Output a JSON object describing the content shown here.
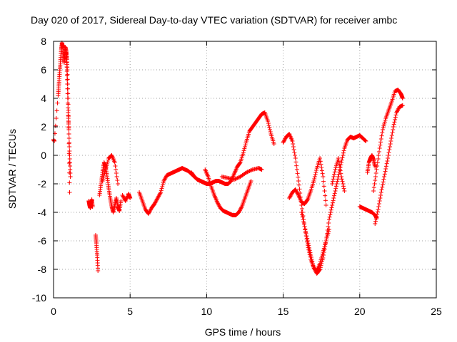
{
  "chart_data": {
    "type": "scatter",
    "title": "Day 020 of 2017, Sidereal Day-to-day VTEC variation (SDTVAR) for receiver ambc",
    "xlabel": "GPS time / hours",
    "ylabel": "SDTVAR / TECUs",
    "xlim": [
      0,
      25
    ],
    "ylim": [
      -10,
      8
    ],
    "xticks": [
      0,
      5,
      10,
      15,
      20,
      25
    ],
    "yticks": [
      -10,
      -8,
      -6,
      -4,
      -2,
      0,
      2,
      4,
      6,
      8
    ],
    "xtick_labels": [
      "0",
      "5",
      "10",
      "15",
      "20",
      "25"
    ],
    "ytick_labels": [
      "-10",
      "-8",
      "-6",
      "-4",
      "-2",
      "0",
      "2",
      "4",
      "6",
      "8"
    ],
    "grid": true,
    "marker": "+",
    "color": "#ff0000",
    "series": [
      {
        "name": "s1",
        "x": [
          0.0,
          0.05,
          0.3,
          0.35,
          0.4,
          0.45,
          0.5,
          0.55,
          0.6,
          0.65,
          0.7,
          0.75,
          0.8,
          0.85,
          0.9,
          0.95,
          1.0,
          1.05
        ],
        "y": [
          1.1,
          1.0,
          4.2,
          5.0,
          5.8,
          6.6,
          7.4,
          7.9,
          7.6,
          7.0,
          6.5,
          7.6,
          7.5,
          7.1,
          6.0,
          4.0,
          1.5,
          -2.6
        ]
      },
      {
        "name": "s2",
        "x": [
          0.8,
          0.85,
          0.9,
          0.95,
          1.0,
          1.05,
          1.1
        ],
        "y": [
          7.2,
          6.8,
          5.0,
          3.0,
          1.8,
          0.0,
          -1.5
        ]
      },
      {
        "name": "s3",
        "x": [
          2.3,
          2.35,
          2.4,
          2.45,
          2.5,
          2.55
        ],
        "y": [
          -3.2,
          -3.5,
          -3.7,
          -3.4,
          -3.1,
          -3.6
        ]
      },
      {
        "name": "s4",
        "x": [
          2.75,
          2.8,
          2.85,
          2.9
        ],
        "y": [
          -5.6,
          -6.2,
          -7.0,
          -8.1
        ]
      },
      {
        "name": "s5",
        "x": [
          3.0,
          3.1,
          3.2,
          3.3,
          3.4,
          3.5,
          3.6,
          3.7,
          3.8,
          3.9,
          4.0,
          4.1,
          4.2,
          4.3,
          4.4
        ],
        "y": [
          -2.8,
          -2.0,
          -1.2,
          -0.5,
          -0.8,
          -1.5,
          -2.3,
          -3.0,
          -3.6,
          -4.0,
          -3.5,
          -3.0,
          -3.6,
          -3.9,
          -3.2
        ]
      },
      {
        "name": "s6",
        "x": [
          3.2,
          3.4,
          3.6,
          3.8,
          4.0,
          4.2
        ],
        "y": [
          -1.8,
          -1.0,
          -0.2,
          0.0,
          -0.5,
          -2.0
        ]
      },
      {
        "name": "s7",
        "x": [
          4.5,
          4.7,
          4.9,
          5.0
        ],
        "y": [
          -2.8,
          -3.2,
          -2.7,
          -3.0
        ]
      },
      {
        "name": "s8",
        "x": [
          5.6,
          5.8,
          6.0,
          6.2,
          6.4,
          6.6,
          6.8,
          7.0,
          7.2,
          7.4,
          7.6,
          7.8,
          8.0,
          8.2,
          8.4,
          8.6,
          8.8,
          9.0,
          9.2,
          9.4,
          9.6,
          9.8,
          10.0
        ],
        "y": [
          -2.6,
          -3.2,
          -3.8,
          -4.1,
          -3.7,
          -3.4,
          -3.0,
          -2.6,
          -1.8,
          -1.4,
          -1.3,
          -1.2,
          -1.1,
          -1.0,
          -0.9,
          -1.0,
          -1.1,
          -1.3,
          -1.5,
          -1.7,
          -1.8,
          -1.9,
          -2.0
        ]
      },
      {
        "name": "s9",
        "x": [
          9.0,
          9.2,
          9.4,
          9.6,
          9.8,
          10.0,
          10.2,
          10.4,
          10.6,
          10.8,
          11.0,
          11.2,
          11.4,
          11.6,
          11.8,
          12.0,
          12.2,
          12.4,
          12.6,
          12.8,
          13.0,
          13.2,
          13.4,
          13.6,
          13.8,
          14.0,
          14.2,
          14.4
        ],
        "y": [
          -1.2,
          -1.5,
          -1.7,
          -1.8,
          -1.9,
          -2.0,
          -2.0,
          -1.9,
          -1.8,
          -1.8,
          -1.9,
          -2.0,
          -2.0,
          -1.8,
          -1.3,
          -0.8,
          -0.5,
          0.2,
          1.0,
          1.7,
          2.0,
          2.3,
          2.6,
          2.9,
          3.0,
          2.4,
          1.5,
          0.8
        ]
      },
      {
        "name": "s10",
        "x": [
          9.9,
          10.1,
          10.3,
          10.5,
          10.7,
          10.9,
          11.1,
          11.3,
          11.5,
          11.7,
          11.9,
          12.1,
          12.3,
          12.5,
          12.7,
          12.9
        ],
        "y": [
          -1.0,
          -1.5,
          -2.2,
          -2.8,
          -3.3,
          -3.7,
          -3.9,
          -4.0,
          -4.1,
          -4.2,
          -4.2,
          -4.0,
          -3.6,
          -3.0,
          -2.4,
          -1.8
        ]
      },
      {
        "name": "s11",
        "x": [
          11.0,
          11.4,
          11.8,
          12.2,
          12.6,
          13.0,
          13.4,
          13.6
        ],
        "y": [
          -1.5,
          -1.6,
          -1.7,
          -1.5,
          -1.2,
          -1.0,
          -0.9,
          -1.0
        ]
      },
      {
        "name": "s12",
        "x": [
          15.0,
          15.2,
          15.4,
          15.6,
          15.8,
          16.0,
          16.2,
          16.4,
          16.6,
          16.8,
          17.0,
          17.2,
          17.4,
          17.6,
          17.8,
          18.0
        ],
        "y": [
          0.9,
          1.3,
          1.5,
          1.0,
          -0.2,
          -1.8,
          -3.5,
          -5.0,
          -6.3,
          -7.3,
          -7.9,
          -8.1,
          -7.6,
          -6.8,
          -6.0,
          -5.2
        ]
      },
      {
        "name": "s13",
        "x": [
          15.4,
          15.6,
          15.8,
          16.0,
          16.2,
          16.4,
          16.6,
          16.8,
          17.0,
          17.2,
          17.4,
          17.6,
          17.8
        ],
        "y": [
          -3.0,
          -2.6,
          -2.4,
          -2.8,
          -3.3,
          -3.4,
          -3.1,
          -2.5,
          -1.8,
          -0.9,
          -0.2,
          -1.5,
          -3.5
        ]
      },
      {
        "name": "s14",
        "x": [
          16.2,
          16.4,
          16.6,
          16.8,
          17.0,
          17.2,
          17.4,
          17.6,
          17.8,
          18.0,
          18.2,
          18.4,
          18.6,
          18.8,
          19.0,
          19.2,
          19.4,
          19.6,
          19.8,
          20.0,
          20.2,
          20.4
        ],
        "y": [
          -4.0,
          -5.0,
          -6.0,
          -7.0,
          -7.9,
          -8.3,
          -8.0,
          -7.2,
          -6.0,
          -4.5,
          -3.5,
          -2.5,
          -1.5,
          -0.5,
          0.5,
          1.1,
          1.3,
          1.2,
          1.3,
          1.4,
          1.2,
          1.0
        ]
      },
      {
        "name": "s15",
        "x": [
          18.2,
          18.4,
          18.6,
          18.8,
          19.0
        ],
        "y": [
          -2.0,
          -1.0,
          -0.2,
          -1.5,
          -2.5
        ]
      },
      {
        "name": "s16",
        "x": [
          20.0,
          20.2,
          20.4,
          20.6,
          20.8,
          21.0,
          21.1
        ],
        "y": [
          -3.6,
          -3.7,
          -3.8,
          -3.9,
          -4.0,
          -4.2,
          -4.4
        ]
      },
      {
        "name": "s17",
        "x": [
          20.5,
          20.6,
          20.7,
          20.8,
          20.9,
          21.0
        ],
        "y": [
          -1.2,
          -0.5,
          -0.2,
          0.0,
          -0.3,
          -0.8
        ]
      },
      {
        "name": "s18",
        "x": [
          21.0,
          21.2,
          21.4,
          21.6,
          21.8,
          22.0,
          22.2,
          22.4,
          22.6,
          22.8
        ],
        "y": [
          -4.8,
          -3.8,
          -2.6,
          -1.5,
          -0.4,
          0.8,
          2.0,
          3.0,
          3.4,
          3.5
        ]
      },
      {
        "name": "s19",
        "x": [
          20.9,
          21.1,
          21.3,
          21.5,
          21.7,
          21.9,
          22.1,
          22.3,
          22.5,
          22.7,
          22.8
        ],
        "y": [
          -2.5,
          -1.0,
          0.5,
          1.8,
          2.6,
          3.2,
          3.8,
          4.5,
          4.6,
          4.3,
          4.0
        ]
      }
    ]
  }
}
